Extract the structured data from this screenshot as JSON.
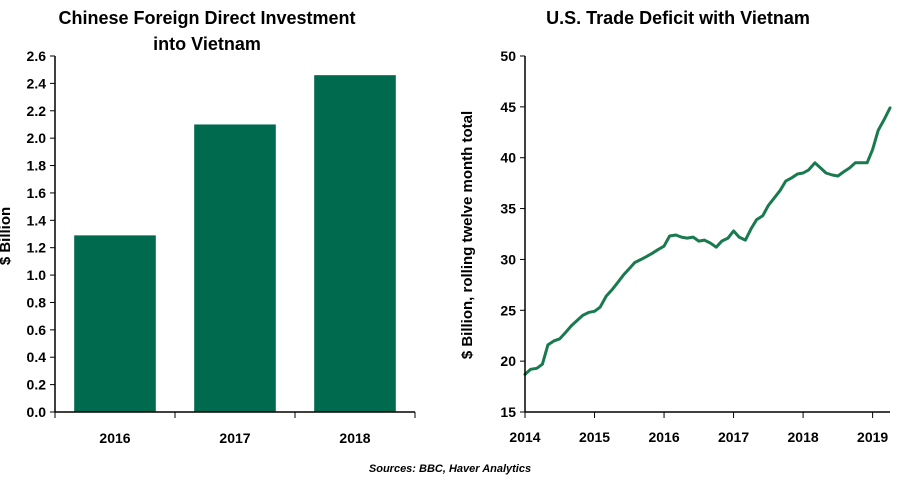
{
  "chart_data": [
    {
      "type": "bar",
      "title": "Chinese Foreign Direct Investment into Vietnam",
      "title_lines": [
        "Chinese Foreign Direct Investment",
        "into Vietnam"
      ],
      "ylabel": "$ Billion",
      "xlabel": "",
      "categories": [
        "2016",
        "2017",
        "2018"
      ],
      "values": [
        1.29,
        2.1,
        2.46
      ],
      "ylim": [
        0.0,
        2.6
      ],
      "yticks": [
        "0.0",
        "0.2",
        "0.4",
        "0.6",
        "0.8",
        "1.0",
        "1.2",
        "1.4",
        "1.6",
        "1.8",
        "2.0",
        "2.2",
        "2.4",
        "2.6"
      ],
      "color": "#006a4e",
      "grid": false
    },
    {
      "type": "line",
      "title": "U.S. Trade Deficit with Vietnam",
      "ylabel": "$ Billion, rolling twelve month total",
      "xlabel": "",
      "xlim": [
        2014.0,
        2019.25
      ],
      "ylim": [
        15,
        50
      ],
      "xticks": [
        "2014",
        "2015",
        "2016",
        "2017",
        "2018",
        "2019"
      ],
      "yticks": [
        "15",
        "20",
        "25",
        "30",
        "35",
        "40",
        "45",
        "50"
      ],
      "color": "#1a7a4f",
      "grid": false,
      "x": [
        2014.0,
        2014.08,
        2014.17,
        2014.25,
        2014.33,
        2014.42,
        2014.5,
        2014.58,
        2014.67,
        2014.75,
        2014.83,
        2014.92,
        2015.0,
        2015.08,
        2015.17,
        2015.25,
        2015.33,
        2015.42,
        2015.5,
        2015.58,
        2015.67,
        2015.75,
        2015.83,
        2015.92,
        2016.0,
        2016.08,
        2016.17,
        2016.25,
        2016.33,
        2016.42,
        2016.5,
        2016.58,
        2016.67,
        2016.75,
        2016.83,
        2016.92,
        2017.0,
        2017.08,
        2017.17,
        2017.25,
        2017.33,
        2017.42,
        2017.5,
        2017.58,
        2017.67,
        2017.75,
        2017.83,
        2017.92,
        2018.0,
        2018.08,
        2018.17,
        2018.25,
        2018.33,
        2018.42,
        2018.5,
        2018.58,
        2018.67,
        2018.75,
        2018.83,
        2018.92,
        2019.0,
        2019.08,
        2019.17,
        2019.25
      ],
      "y": [
        18.7,
        19.2,
        19.3,
        19.7,
        21.6,
        22.0,
        22.2,
        22.8,
        23.5,
        24.0,
        24.5,
        24.8,
        24.9,
        25.3,
        26.4,
        27.0,
        27.7,
        28.5,
        29.1,
        29.7,
        30.0,
        30.3,
        30.6,
        31.0,
        31.3,
        32.3,
        32.4,
        32.2,
        32.1,
        32.2,
        31.8,
        31.9,
        31.6,
        31.2,
        31.8,
        32.1,
        32.8,
        32.2,
        31.9,
        33.0,
        33.9,
        34.3,
        35.3,
        36.0,
        36.8,
        37.7,
        38.0,
        38.4,
        38.5,
        38.8,
        39.5,
        39.0,
        38.5,
        38.3,
        38.2,
        38.6,
        39.0,
        39.5,
        39.5,
        39.5,
        40.8,
        42.7,
        43.8,
        44.9
      ]
    }
  ],
  "footer": {
    "source": "Sources: BBC, Haver Analytics"
  }
}
